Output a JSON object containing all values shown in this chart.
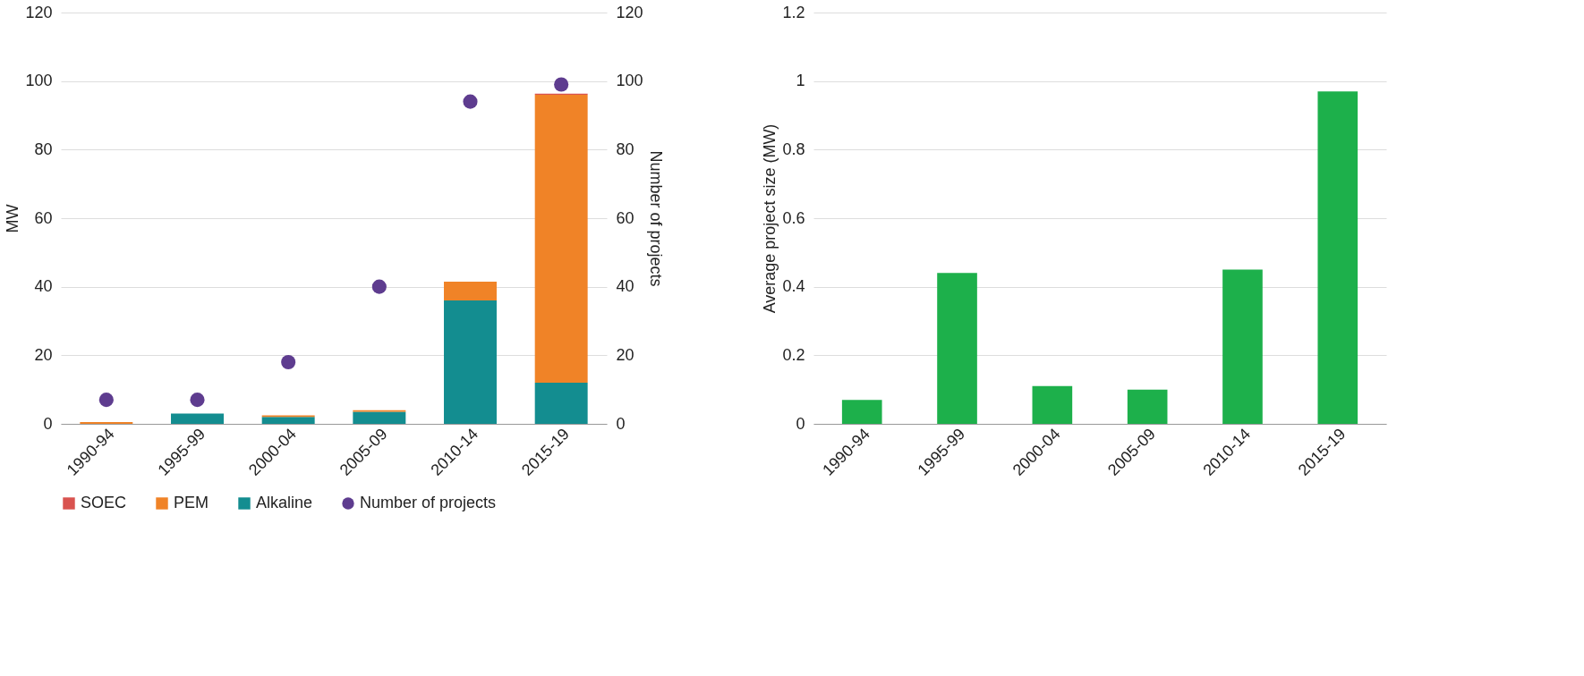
{
  "chart_data": [
    {
      "type": "bar",
      "stacked": true,
      "categories": [
        "1990-94",
        "1995-99",
        "2000-04",
        "2005-09",
        "2010-14",
        "2015-19"
      ],
      "ylabel": "MW",
      "y2label": "Number of projects",
      "ylim": [
        0,
        120
      ],
      "yticks": [
        0,
        20,
        40,
        60,
        80,
        100,
        120
      ],
      "y2lim": [
        0,
        120
      ],
      "y2ticks": [
        0,
        20,
        40,
        60,
        80,
        100,
        120
      ],
      "grid": "y",
      "legend": "bottom",
      "series": [
        {
          "name": "Alkaline",
          "color": "#138d90",
          "values": [
            0,
            3,
            2,
            3.5,
            36,
            12
          ]
        },
        {
          "name": "PEM",
          "color": "#f08327",
          "values": [
            0.5,
            0,
            0.5,
            0.5,
            5.5,
            84
          ]
        },
        {
          "name": "SOEC",
          "color": "#d9534f",
          "values": [
            0,
            0,
            0,
            0,
            0,
            0.3
          ]
        },
        {
          "name": "Number of projects",
          "color": "#5e3c8f",
          "type": "scatter",
          "axis": "y2",
          "marker": "circle",
          "values": [
            7,
            7,
            18,
            40,
            94,
            99
          ]
        }
      ]
    },
    {
      "type": "bar",
      "categories": [
        "1990-94",
        "1995-99",
        "2000-04",
        "2005-09",
        "2010-14",
        "2015-19"
      ],
      "ylabel": "Average project size (MW)",
      "ylim": [
        0,
        1.2
      ],
      "yticks": [
        0,
        0.2,
        0.4,
        0.6,
        0.8,
        1,
        1.2
      ],
      "grid": "y",
      "color": "#1db04b",
      "values": [
        0.07,
        0.44,
        0.11,
        0.1,
        0.45,
        0.97
      ]
    }
  ]
}
